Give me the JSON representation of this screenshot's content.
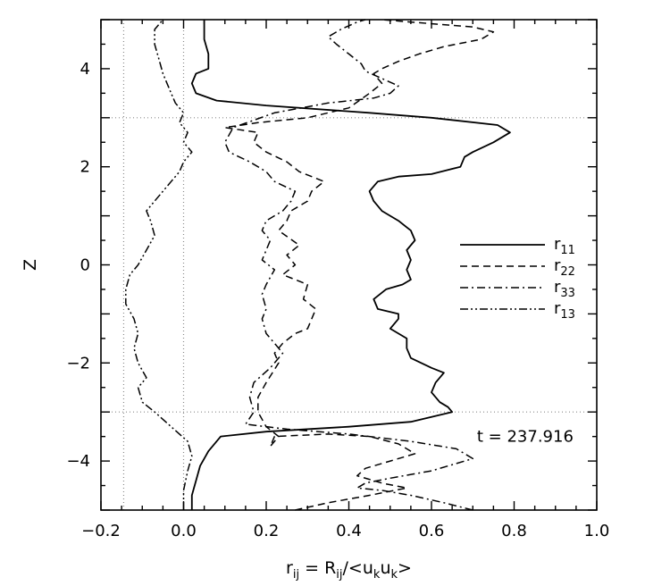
{
  "chart_data": {
    "type": "line",
    "title": "",
    "xlabel": {
      "r": "r",
      "rsub": "ij",
      "eq": " = R",
      "Rsub": "ij",
      "rest": "/<u",
      "k1": "k",
      "u2": "u",
      "k2": "k",
      "close": ">"
    },
    "ylabel": "Z",
    "xlim": [
      -0.2,
      1.0
    ],
    "ylim": [
      -5,
      5
    ],
    "x_ticks": [
      "−0.2",
      "0.0",
      "0.2",
      "0.4",
      "0.6",
      "0.8",
      "1.0"
    ],
    "y_ticks": [
      "−4",
      "−2",
      "0",
      "2",
      "4"
    ],
    "reference_lines": {
      "vertical_x": [
        -0.145,
        0.0
      ],
      "horizontal_z": [
        3.0,
        -3.0
      ]
    },
    "annotation": {
      "text": "t = 237.916",
      "x": 0.71,
      "z": -3.5
    },
    "legend": {
      "placement": "center-right",
      "entries": [
        {
          "r": "r",
          "sub": "11",
          "style": "solid"
        },
        {
          "r": "r",
          "sub": "22",
          "style": "dashed"
        },
        {
          "r": "r",
          "sub": "33",
          "style": "dashdot"
        },
        {
          "r": "r",
          "sub": "13",
          "style": "dashdotdot"
        }
      ]
    },
    "series": [
      {
        "legend": "r11",
        "style": "solid",
        "points": [
          [
            0.02,
            -5.0
          ],
          [
            0.02,
            -4.7
          ],
          [
            0.03,
            -4.4
          ],
          [
            0.04,
            -4.1
          ],
          [
            0.06,
            -3.8
          ],
          [
            0.08,
            -3.6
          ],
          [
            0.09,
            -3.5
          ],
          [
            0.2,
            -3.4
          ],
          [
            0.4,
            -3.3
          ],
          [
            0.55,
            -3.2
          ],
          [
            0.65,
            -3.0
          ],
          [
            0.64,
            -2.9
          ],
          [
            0.62,
            -2.8
          ],
          [
            0.6,
            -2.6
          ],
          [
            0.61,
            -2.4
          ],
          [
            0.63,
            -2.2
          ],
          [
            0.6,
            -2.1
          ],
          [
            0.55,
            -1.9
          ],
          [
            0.54,
            -1.7
          ],
          [
            0.54,
            -1.5
          ],
          [
            0.5,
            -1.3
          ],
          [
            0.52,
            -1.1
          ],
          [
            0.52,
            -1.0
          ],
          [
            0.47,
            -0.9
          ],
          [
            0.46,
            -0.7
          ],
          [
            0.49,
            -0.5
          ],
          [
            0.53,
            -0.4
          ],
          [
            0.55,
            -0.3
          ],
          [
            0.54,
            -0.1
          ],
          [
            0.55,
            0.1
          ],
          [
            0.54,
            0.3
          ],
          [
            0.56,
            0.5
          ],
          [
            0.55,
            0.7
          ],
          [
            0.52,
            0.9
          ],
          [
            0.48,
            1.1
          ],
          [
            0.46,
            1.3
          ],
          [
            0.45,
            1.5
          ],
          [
            0.47,
            1.7
          ],
          [
            0.52,
            1.8
          ],
          [
            0.6,
            1.85
          ],
          [
            0.67,
            2.0
          ],
          [
            0.68,
            2.2
          ],
          [
            0.7,
            2.3
          ],
          [
            0.75,
            2.5
          ],
          [
            0.79,
            2.7
          ],
          [
            0.76,
            2.85
          ],
          [
            0.6,
            3.0
          ],
          [
            0.45,
            3.1
          ],
          [
            0.2,
            3.25
          ],
          [
            0.08,
            3.35
          ],
          [
            0.03,
            3.5
          ],
          [
            0.02,
            3.7
          ],
          [
            0.03,
            3.9
          ],
          [
            0.06,
            4.0
          ],
          [
            0.06,
            4.3
          ],
          [
            0.05,
            4.6
          ],
          [
            0.05,
            5.0
          ]
        ]
      },
      {
        "legend": "r22",
        "style": "dashed",
        "points": [
          [
            0.27,
            -5.0
          ],
          [
            0.35,
            -4.85
          ],
          [
            0.45,
            -4.7
          ],
          [
            0.54,
            -4.55
          ],
          [
            0.48,
            -4.45
          ],
          [
            0.42,
            -4.3
          ],
          [
            0.44,
            -4.15
          ],
          [
            0.5,
            -4.0
          ],
          [
            0.56,
            -3.85
          ],
          [
            0.52,
            -3.65
          ],
          [
            0.45,
            -3.5
          ],
          [
            0.35,
            -3.45
          ],
          [
            0.22,
            -3.5
          ],
          [
            0.21,
            -3.7
          ],
          [
            0.23,
            -3.5
          ],
          [
            0.2,
            -3.3
          ],
          [
            0.18,
            -3.0
          ],
          [
            0.18,
            -2.7
          ],
          [
            0.2,
            -2.4
          ],
          [
            0.23,
            -2.0
          ],
          [
            0.22,
            -1.8
          ],
          [
            0.24,
            -1.6
          ],
          [
            0.27,
            -1.4
          ],
          [
            0.3,
            -1.3
          ],
          [
            0.32,
            -0.9
          ],
          [
            0.29,
            -0.7
          ],
          [
            0.3,
            -0.4
          ],
          [
            0.24,
            -0.2
          ],
          [
            0.27,
            0.0
          ],
          [
            0.25,
            0.2
          ],
          [
            0.28,
            0.4
          ],
          [
            0.23,
            0.7
          ],
          [
            0.25,
            0.9
          ],
          [
            0.26,
            1.1
          ],
          [
            0.3,
            1.3
          ],
          [
            0.31,
            1.5
          ],
          [
            0.34,
            1.7
          ],
          [
            0.28,
            1.9
          ],
          [
            0.25,
            2.1
          ],
          [
            0.2,
            2.3
          ],
          [
            0.17,
            2.5
          ],
          [
            0.18,
            2.7
          ],
          [
            0.1,
            2.8
          ],
          [
            0.18,
            2.9
          ],
          [
            0.3,
            3.0
          ],
          [
            0.4,
            3.2
          ],
          [
            0.45,
            3.5
          ],
          [
            0.48,
            3.7
          ],
          [
            0.46,
            3.9
          ],
          [
            0.48,
            4.0
          ],
          [
            0.52,
            4.15
          ],
          [
            0.57,
            4.3
          ],
          [
            0.63,
            4.45
          ],
          [
            0.72,
            4.6
          ],
          [
            0.75,
            4.75
          ],
          [
            0.7,
            4.85
          ],
          [
            0.55,
            4.95
          ],
          [
            0.48,
            5.0
          ]
        ]
      },
      {
        "legend": "r33",
        "style": "dashdot",
        "points": [
          [
            0.7,
            -5.0
          ],
          [
            0.63,
            -4.85
          ],
          [
            0.55,
            -4.7
          ],
          [
            0.48,
            -4.6
          ],
          [
            0.42,
            -4.55
          ],
          [
            0.44,
            -4.45
          ],
          [
            0.5,
            -4.35
          ],
          [
            0.6,
            -4.2
          ],
          [
            0.7,
            -3.95
          ],
          [
            0.66,
            -3.75
          ],
          [
            0.55,
            -3.6
          ],
          [
            0.4,
            -3.45
          ],
          [
            0.25,
            -3.35
          ],
          [
            0.15,
            -3.25
          ],
          [
            0.17,
            -3.0
          ],
          [
            0.16,
            -2.7
          ],
          [
            0.17,
            -2.4
          ],
          [
            0.21,
            -2.1
          ],
          [
            0.24,
            -1.8
          ],
          [
            0.22,
            -1.6
          ],
          [
            0.2,
            -1.4
          ],
          [
            0.19,
            -1.1
          ],
          [
            0.2,
            -0.9
          ],
          [
            0.19,
            -0.6
          ],
          [
            0.2,
            -0.4
          ],
          [
            0.22,
            -0.1
          ],
          [
            0.19,
            0.1
          ],
          [
            0.2,
            0.3
          ],
          [
            0.21,
            0.5
          ],
          [
            0.19,
            0.7
          ],
          [
            0.2,
            0.9
          ],
          [
            0.24,
            1.1
          ],
          [
            0.26,
            1.3
          ],
          [
            0.27,
            1.5
          ],
          [
            0.22,
            1.7
          ],
          [
            0.2,
            1.9
          ],
          [
            0.16,
            2.1
          ],
          [
            0.11,
            2.3
          ],
          [
            0.1,
            2.5
          ],
          [
            0.12,
            2.8
          ],
          [
            0.22,
            3.1
          ],
          [
            0.35,
            3.3
          ],
          [
            0.46,
            3.4
          ],
          [
            0.5,
            3.5
          ],
          [
            0.52,
            3.65
          ],
          [
            0.48,
            3.8
          ],
          [
            0.44,
            3.95
          ],
          [
            0.43,
            4.1
          ],
          [
            0.4,
            4.3
          ],
          [
            0.37,
            4.5
          ],
          [
            0.35,
            4.65
          ],
          [
            0.38,
            4.8
          ],
          [
            0.42,
            4.95
          ],
          [
            0.44,
            5.0
          ]
        ]
      },
      {
        "legend": "r13",
        "style": "dashdotdot",
        "points": [
          [
            0.0,
            -5.0
          ],
          [
            0.0,
            -4.6
          ],
          [
            0.01,
            -4.2
          ],
          [
            0.02,
            -3.9
          ],
          [
            0.01,
            -3.6
          ],
          [
            -0.03,
            -3.3
          ],
          [
            -0.07,
            -3.0
          ],
          [
            -0.1,
            -2.8
          ],
          [
            -0.11,
            -2.5
          ],
          [
            -0.09,
            -2.3
          ],
          [
            -0.11,
            -2.0
          ],
          [
            -0.12,
            -1.7
          ],
          [
            -0.11,
            -1.4
          ],
          [
            -0.12,
            -1.1
          ],
          [
            -0.14,
            -0.8
          ],
          [
            -0.14,
            -0.5
          ],
          [
            -0.13,
            -0.2
          ],
          [
            -0.11,
            0.0
          ],
          [
            -0.09,
            0.3
          ],
          [
            -0.07,
            0.6
          ],
          [
            -0.08,
            0.9
          ],
          [
            -0.09,
            1.1
          ],
          [
            -0.07,
            1.3
          ],
          [
            -0.05,
            1.5
          ],
          [
            -0.03,
            1.7
          ],
          [
            -0.01,
            1.9
          ],
          [
            0.0,
            2.1
          ],
          [
            0.02,
            2.3
          ],
          [
            0.0,
            2.5
          ],
          [
            0.01,
            2.7
          ],
          [
            -0.01,
            2.9
          ],
          [
            0.0,
            3.1
          ],
          [
            -0.02,
            3.3
          ],
          [
            -0.03,
            3.5
          ],
          [
            -0.04,
            3.7
          ],
          [
            -0.05,
            3.9
          ],
          [
            -0.06,
            4.2
          ],
          [
            -0.07,
            4.5
          ],
          [
            -0.07,
            4.8
          ],
          [
            -0.05,
            5.0
          ]
        ]
      }
    ]
  }
}
